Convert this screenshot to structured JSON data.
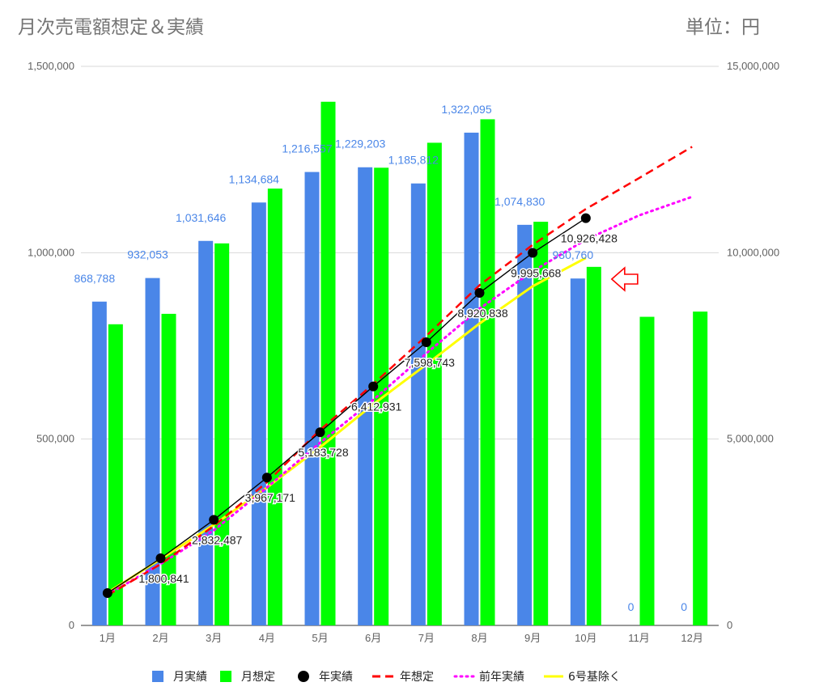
{
  "header": {
    "title": "月次売電額想定＆実績",
    "unit": "単位：円"
  },
  "chart_data": {
    "type": "bar",
    "categories": [
      "1月",
      "2月",
      "3月",
      "4月",
      "5月",
      "6月",
      "7月",
      "8月",
      "9月",
      "10月",
      "11月",
      "12月"
    ],
    "y_left": {
      "min": 0,
      "max": 1500000,
      "ticks": [
        "0",
        "500,000",
        "1,000,000",
        "1,500,000"
      ]
    },
    "y_right": {
      "min": 0,
      "max": 15000000,
      "ticks": [
        "0",
        "5,000,000",
        "10,000,000",
        "15,000,000"
      ]
    },
    "grid": true,
    "legend_position": "bottom",
    "series": [
      {
        "name": "月実績",
        "kind": "bar",
        "axis": "left",
        "color": "#4a86e8",
        "values": [
          868788,
          932053,
          1031646,
          1134684,
          1216557,
          1229203,
          1185812,
          1322095,
          1074830,
          930760,
          0,
          0
        ],
        "labels": [
          "868,788",
          "932,053",
          "1,031,646",
          "1,134,684",
          "1,216,557",
          "1,229,203",
          "1,185,812",
          "1,322,095",
          "1,074,830",
          "930,760",
          "0",
          "0"
        ]
      },
      {
        "name": "月想定",
        "kind": "bar",
        "axis": "left",
        "color": "#00ff00",
        "values": [
          808000,
          836000,
          1025000,
          1172000,
          1405000,
          1228000,
          1295000,
          1358000,
          1083000,
          962000,
          828000,
          842000
        ]
      },
      {
        "name": "年実績",
        "kind": "line-markers",
        "axis": "right",
        "color": "#000000",
        "values": [
          868788,
          1800841,
          2832487,
          3967171,
          5183728,
          6412931,
          7598743,
          8920838,
          9995668,
          10926428,
          null,
          null
        ],
        "labels": [
          "",
          "1,800,841",
          "2,832,487",
          "3,967,171",
          "5,183,728",
          "6,412,931",
          "7,598,743",
          "8,920,838",
          "9,995,668",
          "10,926,428",
          "",
          ""
        ]
      },
      {
        "name": "年想定",
        "kind": "dashed-line",
        "axis": "right",
        "color": "#ff0000",
        "values": [
          808000,
          1644000,
          2669000,
          3841000,
          5246000,
          6474000,
          7769000,
          9127000,
          10210000,
          11172000,
          12000000,
          12842000
        ]
      },
      {
        "name": "前年実績",
        "kind": "dotted-line",
        "axis": "right",
        "color": "#ff00ff",
        "values": [
          830000,
          1650000,
          2550000,
          3700000,
          4900000,
          6050000,
          7300000,
          8500000,
          9500000,
          10350000,
          11000000,
          11500000
        ]
      },
      {
        "name": "6号基除く",
        "kind": "line",
        "axis": "right",
        "color": "#ffff00",
        "values": [
          880000,
          1780000,
          2700000,
          3700000,
          4780000,
          5930000,
          7000000,
          8100000,
          9100000,
          9860000,
          null,
          null
        ]
      }
    ],
    "annotations": [
      {
        "type": "arrow",
        "target": "10月",
        "color": "#ff0000",
        "direction": "left"
      }
    ]
  }
}
